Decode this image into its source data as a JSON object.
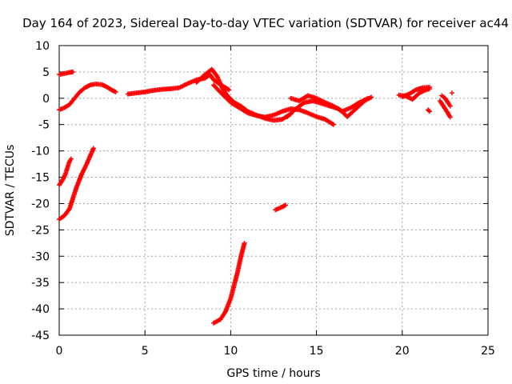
{
  "chart_data": {
    "type": "scatter",
    "title": "Day 164 of 2023, Sidereal Day-to-day VTEC variation (SDTVAR) for receiver ac44",
    "xlabel": "GPS time / hours",
    "ylabel": "SDTVAR / TECUs",
    "xlim": [
      0,
      25
    ],
    "ylim": [
      -45,
      10
    ],
    "xticks": [
      0,
      5,
      10,
      15,
      20,
      25
    ],
    "yticks": [
      10,
      5,
      0,
      -5,
      -10,
      -15,
      -20,
      -25,
      -30,
      -35,
      -40,
      -45
    ],
    "grid": true,
    "marker": "+",
    "series_color": "#ff0000",
    "series": [
      {
        "name": "SDTVAR",
        "segments": [
          [
            [
              0.0,
              4.5
            ],
            [
              0.3,
              4.7
            ],
            [
              0.6,
              4.9
            ],
            [
              0.8,
              5.0
            ]
          ],
          [
            [
              0.0,
              -2.2
            ],
            [
              0.3,
              -1.8
            ],
            [
              0.6,
              -1.2
            ],
            [
              0.9,
              0.0
            ],
            [
              1.2,
              1.2
            ],
            [
              1.5,
              2.0
            ],
            [
              1.8,
              2.5
            ],
            [
              2.1,
              2.7
            ],
            [
              2.5,
              2.6
            ],
            [
              2.8,
              2.1
            ],
            [
              3.1,
              1.5
            ],
            [
              3.3,
              1.2
            ]
          ],
          [
            [
              0.0,
              -16.5
            ],
            [
              0.2,
              -15.5
            ],
            [
              0.35,
              -14.5
            ],
            [
              0.5,
              -13.0
            ],
            [
              0.6,
              -12.0
            ],
            [
              0.7,
              -11.5
            ]
          ],
          [
            [
              0.0,
              -23.0
            ],
            [
              0.3,
              -22.3
            ],
            [
              0.6,
              -21.0
            ],
            [
              0.8,
              -19.0
            ],
            [
              1.0,
              -17.0
            ],
            [
              1.3,
              -14.5
            ],
            [
              1.6,
              -12.5
            ],
            [
              1.8,
              -11.0
            ],
            [
              2.0,
              -9.5
            ]
          ],
          [
            [
              4.0,
              0.8
            ],
            [
              4.5,
              1.0
            ],
            [
              5.0,
              1.2
            ],
            [
              5.5,
              1.5
            ],
            [
              6.0,
              1.7
            ],
            [
              6.5,
              1.8
            ],
            [
              7.0,
              2.0
            ],
            [
              7.5,
              2.8
            ],
            [
              8.0,
              3.5
            ],
            [
              8.5,
              3.8
            ],
            [
              8.8,
              4.5
            ],
            [
              9.0,
              3.5
            ],
            [
              9.3,
              2.8
            ],
            [
              9.6,
              2.2
            ],
            [
              9.9,
              1.6
            ]
          ],
          [
            [
              8.0,
              3.0
            ],
            [
              8.5,
              4.5
            ],
            [
              8.9,
              5.5
            ],
            [
              9.2,
              4.2
            ],
            [
              9.5,
              2.0
            ],
            [
              9.8,
              0.5
            ],
            [
              10.2,
              -0.8
            ],
            [
              10.6,
              -1.5
            ],
            [
              11.0,
              -2.5
            ],
            [
              11.5,
              -3.2
            ],
            [
              12.0,
              -3.8
            ],
            [
              12.5,
              -4.2
            ],
            [
              13.0,
              -4.0
            ],
            [
              13.5,
              -3.0
            ]
          ],
          [
            [
              9.0,
              2.5
            ],
            [
              9.5,
              0.8
            ],
            [
              10.0,
              -0.8
            ],
            [
              10.5,
              -1.8
            ],
            [
              11.0,
              -2.8
            ],
            [
              11.5,
              -3.3
            ],
            [
              12.0,
              -3.6
            ],
            [
              12.5,
              -3.2
            ],
            [
              13.0,
              -2.5
            ],
            [
              13.5,
              -2.0
            ],
            [
              14.0,
              -2.2
            ],
            [
              14.5,
              -2.8
            ],
            [
              15.0,
              -3.5
            ],
            [
              15.5,
              -4.0
            ],
            [
              16.0,
              -5.0
            ]
          ],
          [
            [
              13.5,
              0.0
            ],
            [
              14.0,
              -0.5
            ],
            [
              14.5,
              0.5
            ],
            [
              15.0,
              0.0
            ],
            [
              15.5,
              -0.8
            ],
            [
              16.0,
              -1.5
            ],
            [
              16.5,
              -2.5
            ],
            [
              17.0,
              -1.8
            ],
            [
              17.5,
              -0.8
            ],
            [
              18.0,
              0.0
            ]
          ],
          [
            [
              13.3,
              -3.5
            ],
            [
              13.8,
              -2.0
            ],
            [
              14.3,
              -0.8
            ],
            [
              14.8,
              -0.5
            ],
            [
              15.3,
              -1.0
            ],
            [
              15.8,
              -1.5
            ],
            [
              16.3,
              -2.0
            ],
            [
              16.8,
              -3.5
            ],
            [
              17.3,
              -2.0
            ],
            [
              17.8,
              -0.5
            ],
            [
              18.2,
              0.2
            ]
          ],
          [
            [
              19.8,
              0.6
            ],
            [
              20.2,
              0.4
            ],
            [
              20.6,
              -0.2
            ],
            [
              21.0,
              1.0
            ],
            [
              21.3,
              1.5
            ],
            [
              21.6,
              1.8
            ]
          ],
          [
            [
              20.0,
              0.3
            ],
            [
              20.4,
              0.8
            ],
            [
              20.8,
              1.6
            ],
            [
              21.2,
              2.0
            ],
            [
              21.6,
              2.1
            ]
          ],
          [
            [
              22.2,
              -0.5
            ],
            [
              22.4,
              -1.5
            ],
            [
              22.6,
              -2.5
            ],
            [
              22.8,
              -3.6
            ]
          ],
          [
            [
              22.3,
              0.5
            ],
            [
              22.5,
              0.0
            ],
            [
              22.7,
              -1.0
            ],
            [
              22.8,
              -1.5
            ]
          ],
          [
            [
              21.5,
              -2.2
            ],
            [
              21.6,
              -2.5
            ]
          ],
          [
            [
              22.9,
              1.0
            ]
          ],
          [
            [
              12.6,
              -21.2
            ],
            [
              12.9,
              -20.8
            ],
            [
              13.2,
              -20.3
            ]
          ],
          [
            [
              9.0,
              -42.7
            ],
            [
              9.4,
              -42.0
            ],
            [
              9.7,
              -40.5
            ],
            [
              10.0,
              -38.0
            ],
            [
              10.2,
              -35.5
            ],
            [
              10.4,
              -33.0
            ],
            [
              10.6,
              -30.0
            ],
            [
              10.8,
              -27.5
            ]
          ]
        ]
      }
    ]
  }
}
